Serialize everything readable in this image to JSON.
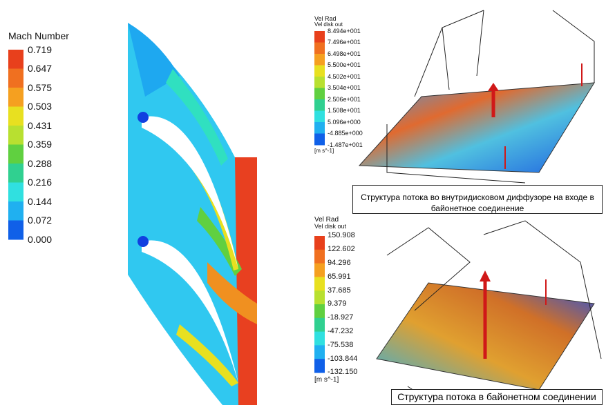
{
  "left_panel": {
    "legend": {
      "title": "Mach Number",
      "labels": [
        "0.719",
        "0.647",
        "0.575",
        "0.503",
        "0.431",
        "0.359",
        "0.288",
        "0.216",
        "0.144",
        "0.072",
        "0.000"
      ]
    }
  },
  "top_right_panel": {
    "legend": {
      "title": "Vel Rad",
      "subtitle": "Vel disk out",
      "labels": [
        "8.494e+001",
        "7.496e+001",
        "6.498e+001",
        "5.500e+001",
        "4.502e+001",
        "3.504e+001",
        "2.506e+001",
        "1.508e+001",
        "5.096e+000",
        "-4.885e+000",
        "-1.487e+001"
      ],
      "unit": "[m s^-1]"
    },
    "caption": "Структура потока во внутридисковом диффузоре на входе в байонетное соединение"
  },
  "bottom_right_panel": {
    "legend": {
      "title": "Vel Rad",
      "subtitle": "Vel disk out",
      "labels": [
        "150.908",
        "122.602",
        "94.296",
        "65.991",
        "37.685",
        "9.379",
        "-18.927",
        "-47.232",
        "-75.538",
        "-103.844",
        "-132.150"
      ],
      "unit": "[m s^-1]"
    },
    "caption": "Структура потока в байонетном соединении"
  }
}
